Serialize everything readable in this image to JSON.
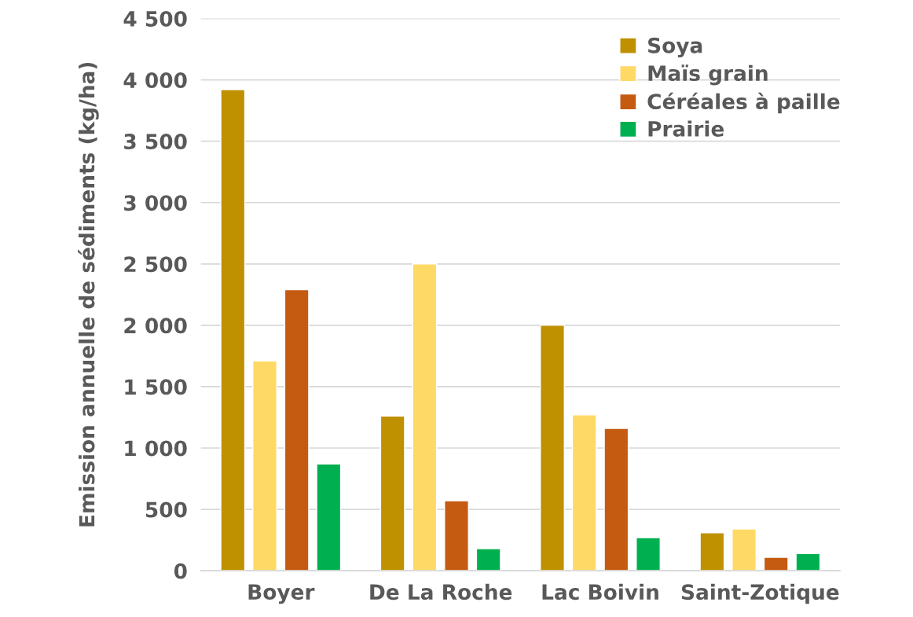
{
  "chart_data": {
    "type": "bar",
    "ylabel": "Emission annuelle de sédiments (kg/ha)",
    "categories": [
      "Boyer",
      "De La Roche",
      "Lac Boivin",
      "Saint-Zotique"
    ],
    "series": [
      {
        "name": "Soya",
        "color": "#bf9000",
        "values": [
          3920,
          1260,
          2000,
          310
        ]
      },
      {
        "name": "Maïs grain",
        "color": "#ffd966",
        "values": [
          1710,
          2500,
          1270,
          340
        ]
      },
      {
        "name": "Céréales à paille",
        "color": "#c55a11",
        "values": [
          2290,
          570,
          1160,
          110
        ]
      },
      {
        "name": "Prairie",
        "color": "#00b050",
        "values": [
          870,
          180,
          270,
          140
        ]
      }
    ],
    "ylim": [
      0,
      4500
    ],
    "yticks": [
      {
        "value": 0,
        "label": "0"
      },
      {
        "value": 500,
        "label": "500"
      },
      {
        "value": 1000,
        "label": "1 000"
      },
      {
        "value": 1500,
        "label": "1 500"
      },
      {
        "value": 2000,
        "label": "2 000"
      },
      {
        "value": 2500,
        "label": "2 500"
      },
      {
        "value": 3000,
        "label": "3 000"
      },
      {
        "value": 3500,
        "label": "3 500"
      },
      {
        "value": 4000,
        "label": "4 000"
      },
      {
        "value": 4500,
        "label": "4 500"
      }
    ],
    "grid": "y",
    "legend": "top right"
  }
}
